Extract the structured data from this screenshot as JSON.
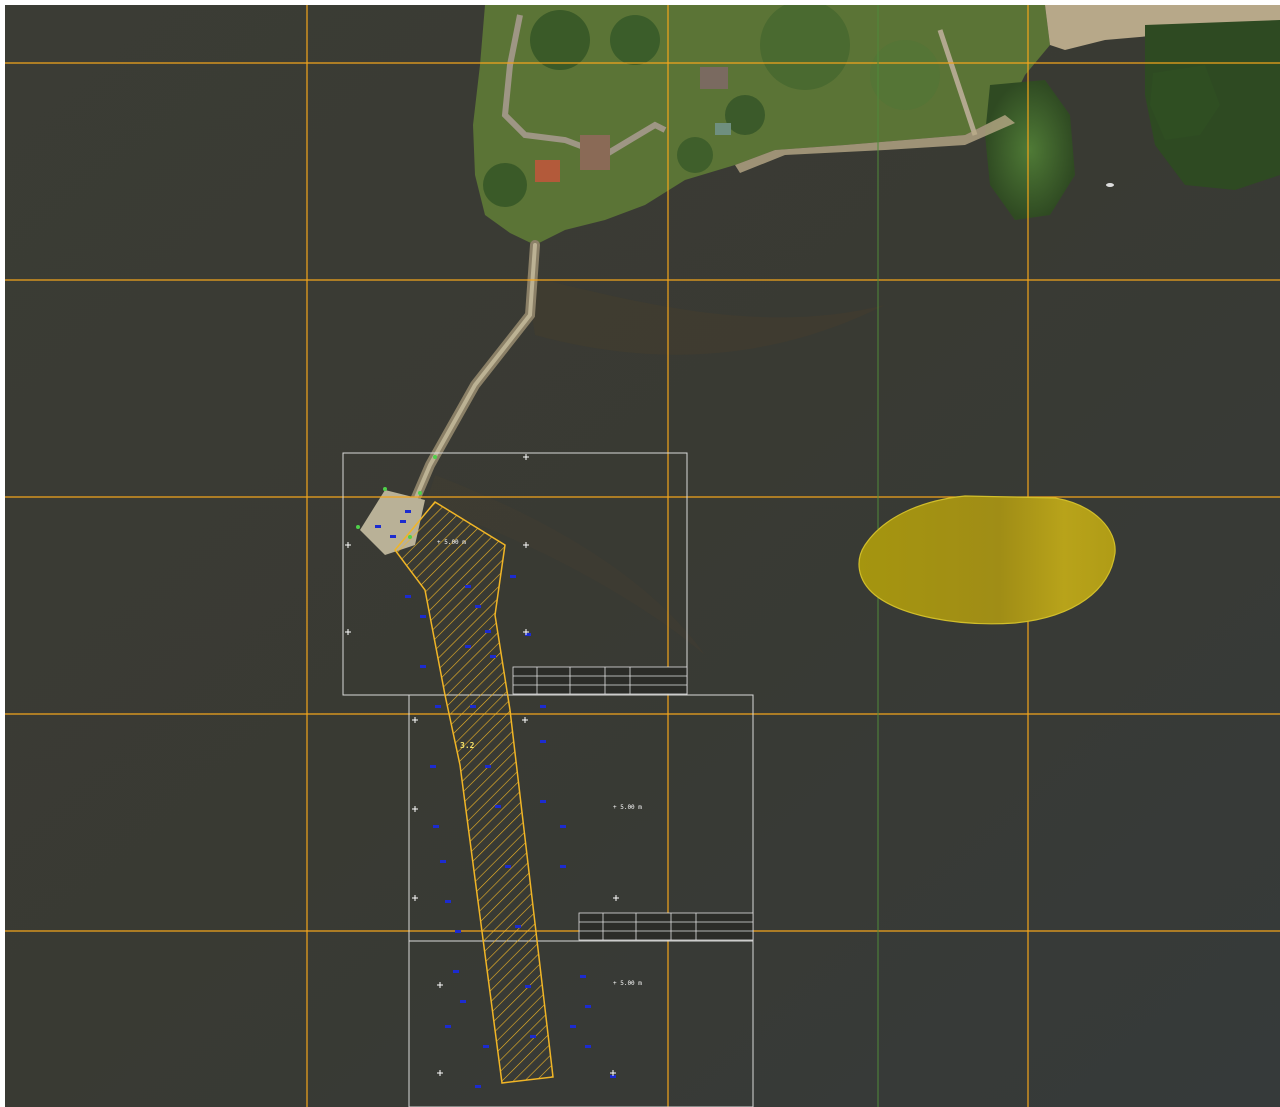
{
  "map": {
    "kind": "aerial orthophoto with CAD overlay",
    "colors": {
      "water": "#3a3b33",
      "land": "#5c7a3a",
      "forest": "#3f5e2b",
      "grid": "#f2a51c",
      "meridian": "#4f8a3a",
      "hatch": "#f0b526",
      "soundings": "#1c2bd0",
      "sheet_frame": "#d9d9d9",
      "blob": "#b3a112"
    },
    "overlay": {
      "grid_rows": 5,
      "grid_cols": 5,
      "layers": [
        "orthophoto",
        "grid",
        "sheet-frames",
        "dredging-area",
        "soundings",
        "stamp-tables",
        "yellow-zone"
      ]
    },
    "labels": {
      "area_top": "+ 5.00 m",
      "area_mid": "3.2",
      "point_a": "+ 5.00 m",
      "point_b": "+ 5.00 m"
    }
  }
}
